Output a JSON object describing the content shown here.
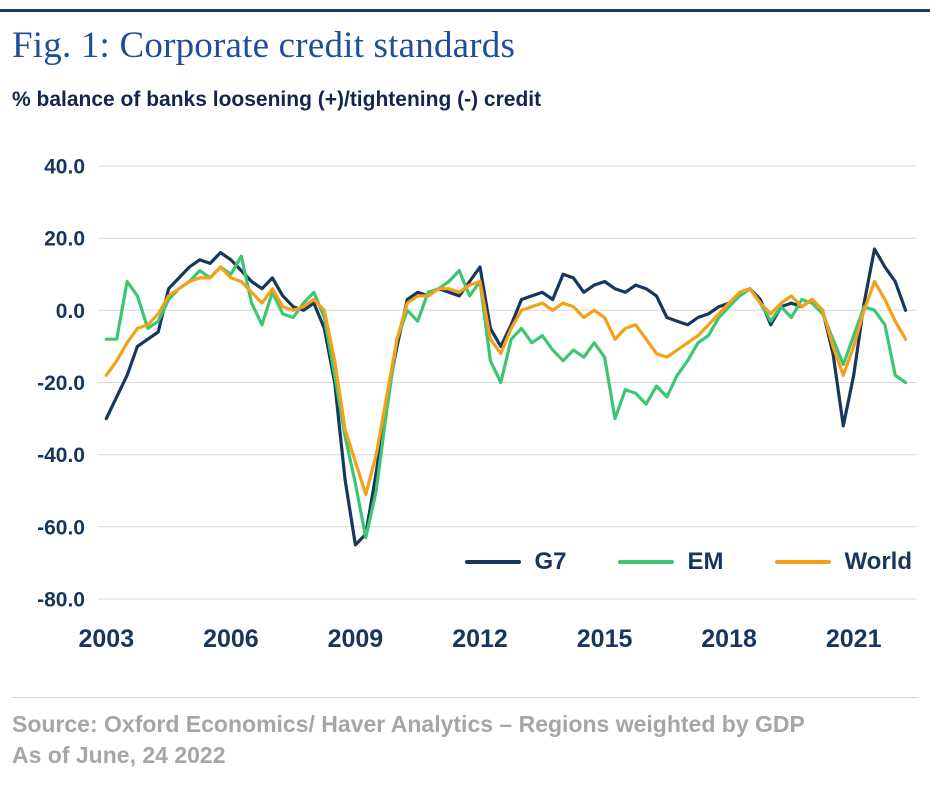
{
  "header": {
    "title": "Fig. 1: Corporate credit standards",
    "subtitle": "% balance of banks loosening (+)/tightening (-) credit"
  },
  "footer": {
    "source": "Source: Oxford Economics/ Haver Analytics – Regions weighted by GDP",
    "as_of": "As of June, 24 2022"
  },
  "colors": {
    "accent_rule": "#1F3864",
    "title_text": "#1F4E9B",
    "axis_text": "#17365D",
    "grid_line": "#D8D8D8",
    "source_text": "#A6A6A6"
  },
  "chart_data": {
    "type": "line",
    "title": "Fig. 1: Corporate credit standards",
    "ylabel": "% balance of banks loosening (+)/tightening (-) credit",
    "xlabel": "",
    "xlim": [
      2002.8,
      2022.5
    ],
    "ylim": [
      -80,
      40
    ],
    "grid": "horizontal",
    "legend_position": "inside-bottom-right",
    "y_ticks": [
      40,
      20,
      0,
      -20,
      -40,
      -60,
      -80
    ],
    "y_tick_labels": [
      "40.0",
      "20.0",
      "0.0",
      "-20.0",
      "-40.0",
      "-60.0",
      "-80.0"
    ],
    "x_ticks": [
      2003,
      2006,
      2009,
      2012,
      2015,
      2018,
      2021
    ],
    "x_tick_labels": [
      "2003",
      "2006",
      "2009",
      "2012",
      "2015",
      "2018",
      "2021"
    ],
    "x": [
      2003,
      2003.25,
      2003.5,
      2003.75,
      2004,
      2004.25,
      2004.5,
      2004.75,
      2005,
      2005.25,
      2005.5,
      2005.75,
      2006,
      2006.25,
      2006.5,
      2006.75,
      2007,
      2007.25,
      2007.5,
      2007.75,
      2008,
      2008.25,
      2008.5,
      2008.75,
      2009,
      2009.25,
      2009.5,
      2009.75,
      2010,
      2010.25,
      2010.5,
      2010.75,
      2011,
      2011.25,
      2011.5,
      2011.75,
      2012,
      2012.25,
      2012.5,
      2012.75,
      2013,
      2013.25,
      2013.5,
      2013.75,
      2014,
      2014.25,
      2014.5,
      2014.75,
      2015,
      2015.25,
      2015.5,
      2015.75,
      2016,
      2016.25,
      2016.5,
      2016.75,
      2017,
      2017.25,
      2017.5,
      2017.75,
      2018,
      2018.25,
      2018.5,
      2018.75,
      2019,
      2019.25,
      2019.5,
      2019.75,
      2020,
      2020.25,
      2020.5,
      2020.75,
      2021,
      2021.25,
      2021.5,
      2021.75,
      2022,
      2022.25
    ],
    "series": [
      {
        "name": "G7",
        "color": "#17375E",
        "values": [
          -30,
          -24,
          -18,
          -10,
          -8,
          -6,
          6,
          9,
          12,
          14,
          13,
          16,
          14,
          11,
          8,
          6,
          9,
          4,
          1,
          0,
          2,
          -5,
          -20,
          -47,
          -65,
          -62,
          -45,
          -25,
          -10,
          3,
          5,
          4,
          6,
          5,
          4,
          8,
          12,
          -5,
          -10,
          -4,
          3,
          4,
          5,
          3,
          10,
          9,
          5,
          7,
          8,
          6,
          5,
          7,
          6,
          4,
          -2,
          -3,
          -4,
          -2,
          -1,
          1,
          2,
          4,
          6,
          3,
          -4,
          1,
          2,
          1,
          3,
          0,
          -12,
          -32,
          -18,
          2,
          17,
          12,
          8,
          0
        ]
      },
      {
        "name": "EM",
        "color": "#3CC674",
        "values": [
          -8,
          -8,
          8,
          4,
          -5,
          -3,
          3,
          6,
          8,
          11,
          9,
          12,
          10,
          15,
          2,
          -4,
          5,
          -1,
          -2,
          2,
          5,
          -2,
          -18,
          -35,
          -48,
          -63,
          -50,
          -28,
          -8,
          0,
          -3,
          5,
          6,
          8,
          11,
          4,
          8,
          -14,
          -20,
          -8,
          -5,
          -9,
          -7,
          -11,
          -14,
          -11,
          -13,
          -9,
          -13,
          -30,
          -22,
          -23,
          -26,
          -21,
          -24,
          -18,
          -14,
          -9,
          -7,
          -2,
          1,
          4,
          6,
          2,
          -3,
          1,
          -2,
          3,
          2,
          -1,
          -8,
          -15,
          -7,
          1,
          0,
          -4,
          -18,
          -20
        ]
      },
      {
        "name": "World",
        "color": "#F6A01A",
        "values": [
          -18,
          -14,
          -9,
          -5,
          -4,
          -1,
          4,
          6,
          8,
          9,
          9,
          12,
          9,
          8,
          5,
          2,
          6,
          1,
          0,
          1,
          3,
          0,
          -14,
          -33,
          -42,
          -51,
          -40,
          -24,
          -8,
          2,
          4,
          4,
          6,
          6,
          5,
          7,
          8,
          -8,
          -12,
          -5,
          0,
          1,
          2,
          0,
          2,
          1,
          -2,
          0,
          -2,
          -8,
          -5,
          -4,
          -8,
          -12,
          -13,
          -11,
          -9,
          -7,
          -4,
          -1,
          2,
          5,
          6,
          2,
          -1,
          2,
          4,
          1,
          3,
          0,
          -10,
          -18,
          -10,
          0,
          8,
          3,
          -3,
          -8
        ]
      }
    ]
  }
}
